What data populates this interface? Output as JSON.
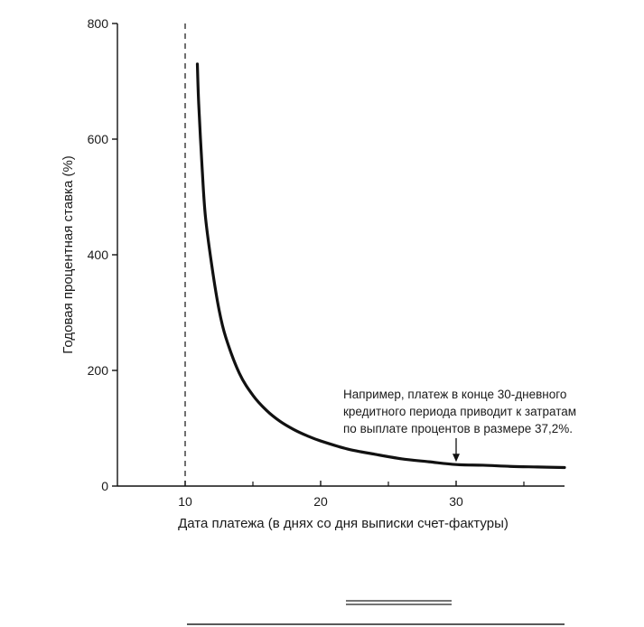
{
  "chart_data": {
    "type": "line",
    "title": "",
    "xlabel": "Дата платежа (в днях со дня выписки счет-фактуры)",
    "ylabel": "Годовая процентная ставка (%)",
    "xlim": [
      5,
      38
    ],
    "ylim": [
      0,
      800
    ],
    "x_ticks": [
      10,
      20,
      30
    ],
    "x_minor_ticks": [
      15,
      25,
      35
    ],
    "y_ticks": [
      0,
      200,
      400,
      600,
      800
    ],
    "grid": false,
    "legend": "none",
    "line_color": "#111111",
    "reference_lines": [
      {
        "axis": "x",
        "value": 10,
        "style": "dashed"
      }
    ],
    "series": [
      {
        "values_x": [
          10.9,
          11,
          11.25,
          11.5,
          12,
          12.5,
          13,
          14,
          15,
          16,
          17,
          18,
          19,
          20,
          22,
          24,
          26,
          28,
          30,
          32,
          34,
          36,
          38
        ],
        "values_y": [
          730,
          661,
          551,
          465,
          376,
          305,
          257,
          195,
          157,
          131,
          112,
          98,
          87,
          78,
          64,
          55,
          47,
          42,
          37.2,
          36,
          34,
          33,
          32
        ]
      }
    ],
    "annotation": {
      "lines": [
        "Например, платеж в конце 30-дневного",
        "кредитного периода приводит к затратам",
        "по выплате процентов в размере 37,2%."
      ],
      "target_x": 30,
      "target_y": 37.2
    }
  }
}
